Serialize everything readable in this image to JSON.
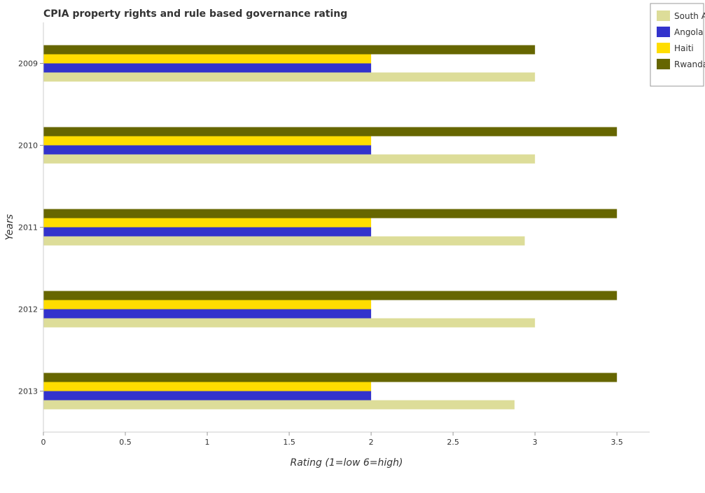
{
  "chart_data": {
    "type": "bar",
    "orientation": "horizontal",
    "title": "CPIA property rights and rule based governance rating",
    "xlabel": "Rating (1=low 6=high)",
    "ylabel": "Years",
    "xlim": [
      0,
      3.7
    ],
    "x_ticks": [
      "0",
      "0.5",
      "1",
      "1.5",
      "2",
      "2.5",
      "3",
      "3.5"
    ],
    "categories": [
      "2009",
      "2010",
      "2011",
      "2012",
      "2013"
    ],
    "series": [
      {
        "name": "South Asia",
        "color": "#dddd99",
        "values": [
          3.0,
          3.0,
          2.9375,
          3.0,
          2.875
        ]
      },
      {
        "name": "Angola",
        "color": "#3333cc",
        "values": [
          2.0,
          2.0,
          2.0,
          2.0,
          2.0
        ]
      },
      {
        "name": "Haiti",
        "color": "#ffdd00",
        "values": [
          2.0,
          2.0,
          2.0,
          2.0,
          2.0
        ]
      },
      {
        "name": "Rwanda",
        "color": "#666600",
        "values": [
          3.0,
          3.5,
          3.5,
          3.5,
          3.5
        ]
      }
    ],
    "grid": false,
    "legend_position": "top-right"
  }
}
